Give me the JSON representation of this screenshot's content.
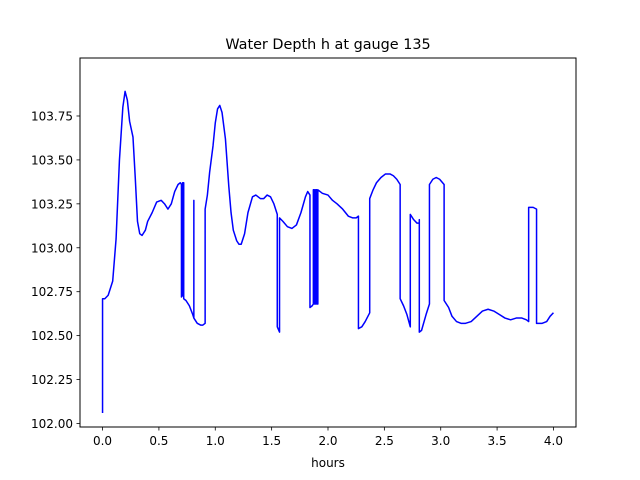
{
  "chart_data": {
    "type": "line",
    "title": "Water Depth h at gauge 135",
    "xlabel": "hours",
    "ylabel": "",
    "xlim": [
      -0.2,
      4.2
    ],
    "ylim": [
      101.98,
      104.08
    ],
    "grid": false,
    "legend": "none",
    "x_ticks": [
      0.0,
      0.5,
      1.0,
      1.5,
      2.0,
      2.5,
      3.0,
      3.5,
      4.0
    ],
    "x_tick_labels": [
      "0.0",
      "0.5",
      "1.0",
      "1.5",
      "2.0",
      "2.5",
      "3.0",
      "3.5",
      "4.0"
    ],
    "y_ticks": [
      102.0,
      102.25,
      102.5,
      102.75,
      103.0,
      103.25,
      103.5,
      103.75
    ],
    "y_tick_labels": [
      "102.00",
      "102.25",
      "102.50",
      "102.75",
      "103.00",
      "103.25",
      "103.50",
      "103.75"
    ],
    "series": [
      {
        "color": "#0000ff",
        "points": [
          [
            0.0,
            102.06
          ],
          [
            0.0,
            102.71
          ],
          [
            0.02,
            102.71
          ],
          [
            0.05,
            102.73
          ],
          [
            0.09,
            102.81
          ],
          [
            0.12,
            103.05
          ],
          [
            0.15,
            103.5
          ],
          [
            0.18,
            103.8
          ],
          [
            0.2,
            103.89
          ],
          [
            0.22,
            103.84
          ],
          [
            0.24,
            103.72
          ],
          [
            0.27,
            103.63
          ],
          [
            0.29,
            103.4
          ],
          [
            0.31,
            103.15
          ],
          [
            0.33,
            103.08
          ],
          [
            0.35,
            103.07
          ],
          [
            0.38,
            103.1
          ],
          [
            0.4,
            103.15
          ],
          [
            0.44,
            103.2
          ],
          [
            0.48,
            103.26
          ],
          [
            0.52,
            103.27
          ],
          [
            0.55,
            103.25
          ],
          [
            0.58,
            103.22
          ],
          [
            0.61,
            103.25
          ],
          [
            0.64,
            103.32
          ],
          [
            0.67,
            103.36
          ],
          [
            0.69,
            103.37
          ],
          [
            0.7,
            103.36
          ],
          [
            0.7,
            102.72
          ],
          [
            0.71,
            102.73
          ],
          [
            0.71,
            103.37
          ],
          [
            0.72,
            103.37
          ],
          [
            0.72,
            102.71
          ],
          [
            0.74,
            102.7
          ],
          [
            0.77,
            102.67
          ],
          [
            0.8,
            102.62
          ],
          [
            0.81,
            102.6
          ],
          [
            0.81,
            103.27
          ],
          [
            0.81,
            102.6
          ],
          [
            0.84,
            102.57
          ],
          [
            0.87,
            102.56
          ],
          [
            0.89,
            102.56
          ],
          [
            0.91,
            102.57
          ],
          [
            0.91,
            103.22
          ],
          [
            0.93,
            103.3
          ],
          [
            0.95,
            103.43
          ],
          [
            0.98,
            103.58
          ],
          [
            1.0,
            103.71
          ],
          [
            1.02,
            103.79
          ],
          [
            1.04,
            103.81
          ],
          [
            1.06,
            103.77
          ],
          [
            1.09,
            103.62
          ],
          [
            1.12,
            103.35
          ],
          [
            1.14,
            103.2
          ],
          [
            1.16,
            103.1
          ],
          [
            1.19,
            103.04
          ],
          [
            1.21,
            103.02
          ],
          [
            1.23,
            103.02
          ],
          [
            1.26,
            103.08
          ],
          [
            1.29,
            103.2
          ],
          [
            1.33,
            103.29
          ],
          [
            1.36,
            103.3
          ],
          [
            1.4,
            103.28
          ],
          [
            1.43,
            103.28
          ],
          [
            1.46,
            103.3
          ],
          [
            1.49,
            103.29
          ],
          [
            1.52,
            103.25
          ],
          [
            1.55,
            103.19
          ],
          [
            1.55,
            102.55
          ],
          [
            1.57,
            102.52
          ],
          [
            1.57,
            103.17
          ],
          [
            1.6,
            103.15
          ],
          [
            1.64,
            103.12
          ],
          [
            1.68,
            103.11
          ],
          [
            1.72,
            103.13
          ],
          [
            1.76,
            103.2
          ],
          [
            1.8,
            103.29
          ],
          [
            1.82,
            103.32
          ],
          [
            1.84,
            103.3
          ],
          [
            1.84,
            102.66
          ],
          [
            1.86,
            102.67
          ],
          [
            1.87,
            102.68
          ],
          [
            1.87,
            103.33
          ],
          [
            1.88,
            103.33
          ],
          [
            1.88,
            102.68
          ],
          [
            1.89,
            102.68
          ],
          [
            1.89,
            103.33
          ],
          [
            1.9,
            103.33
          ],
          [
            1.9,
            102.68
          ],
          [
            1.91,
            102.68
          ],
          [
            1.91,
            103.33
          ],
          [
            1.95,
            103.31
          ],
          [
            2.0,
            103.3
          ],
          [
            2.04,
            103.27
          ],
          [
            2.08,
            103.25
          ],
          [
            2.13,
            103.22
          ],
          [
            2.18,
            103.18
          ],
          [
            2.22,
            103.17
          ],
          [
            2.25,
            103.17
          ],
          [
            2.27,
            103.18
          ],
          [
            2.27,
            102.54
          ],
          [
            2.3,
            102.55
          ],
          [
            2.33,
            102.58
          ],
          [
            2.37,
            102.63
          ],
          [
            2.37,
            103.28
          ],
          [
            2.4,
            103.33
          ],
          [
            2.43,
            103.37
          ],
          [
            2.47,
            103.4
          ],
          [
            2.51,
            103.42
          ],
          [
            2.55,
            103.42
          ],
          [
            2.58,
            103.41
          ],
          [
            2.61,
            103.39
          ],
          [
            2.64,
            103.36
          ],
          [
            2.64,
            102.71
          ],
          [
            2.67,
            102.67
          ],
          [
            2.7,
            102.62
          ],
          [
            2.73,
            102.55
          ],
          [
            2.73,
            103.19
          ],
          [
            2.76,
            103.16
          ],
          [
            2.79,
            103.14
          ],
          [
            2.81,
            103.14
          ],
          [
            2.81,
            103.16
          ],
          [
            2.81,
            102.52
          ],
          [
            2.83,
            102.53
          ],
          [
            2.87,
            102.62
          ],
          [
            2.9,
            102.68
          ],
          [
            2.9,
            103.36
          ],
          [
            2.93,
            103.39
          ],
          [
            2.96,
            103.4
          ],
          [
            2.99,
            103.39
          ],
          [
            3.03,
            103.36
          ],
          [
            3.03,
            102.7
          ],
          [
            3.07,
            102.66
          ],
          [
            3.1,
            102.61
          ],
          [
            3.14,
            102.58
          ],
          [
            3.18,
            102.57
          ],
          [
            3.22,
            102.57
          ],
          [
            3.27,
            102.58
          ],
          [
            3.32,
            102.61
          ],
          [
            3.37,
            102.64
          ],
          [
            3.42,
            102.65
          ],
          [
            3.47,
            102.64
          ],
          [
            3.52,
            102.62
          ],
          [
            3.57,
            102.6
          ],
          [
            3.62,
            102.59
          ],
          [
            3.67,
            102.6
          ],
          [
            3.72,
            102.6
          ],
          [
            3.76,
            102.59
          ],
          [
            3.78,
            102.58
          ],
          [
            3.78,
            103.23
          ],
          [
            3.82,
            103.23
          ],
          [
            3.85,
            103.22
          ],
          [
            3.85,
            102.57
          ],
          [
            3.9,
            102.57
          ],
          [
            3.94,
            102.58
          ],
          [
            3.97,
            102.61
          ],
          [
            4.0,
            102.63
          ]
        ]
      }
    ]
  }
}
